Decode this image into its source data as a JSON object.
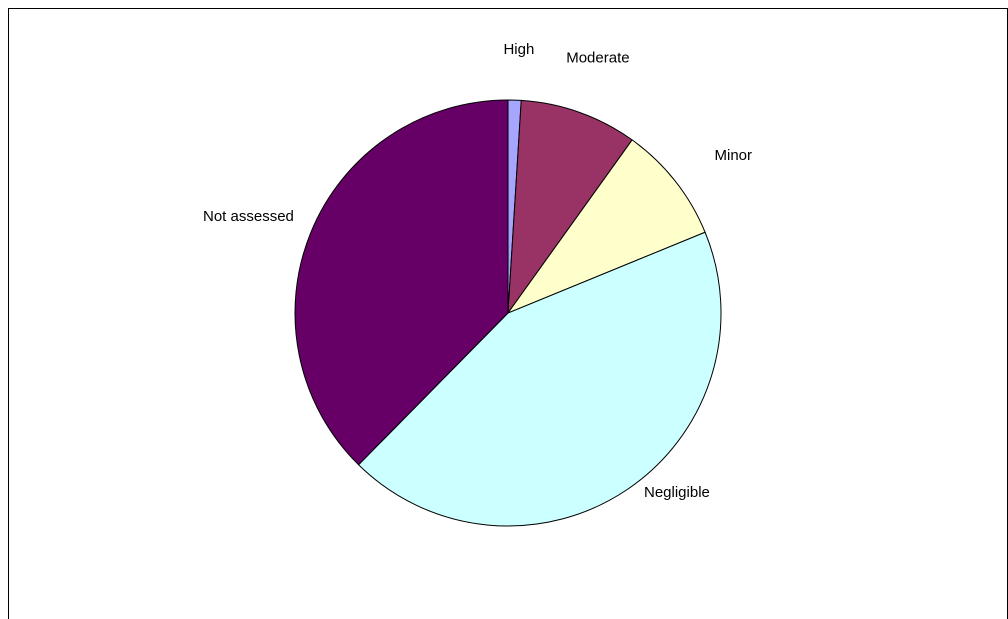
{
  "chart_data": {
    "type": "pie",
    "title": "",
    "legend": "none",
    "start_angle_deg": 0,
    "direction": "clockwise",
    "slices": [
      {
        "label": "High",
        "value": 1,
        "color": "#A6A6FF"
      },
      {
        "label": "Moderate",
        "value": 9,
        "color": "#993366"
      },
      {
        "label": "Minor",
        "value": 9,
        "color": "#FFFFCC"
      },
      {
        "label": "Negligible",
        "value": 44,
        "color": "#CCFFFF"
      },
      {
        "label": "Not assessed",
        "value": 38,
        "color": "#660066"
      }
    ]
  }
}
